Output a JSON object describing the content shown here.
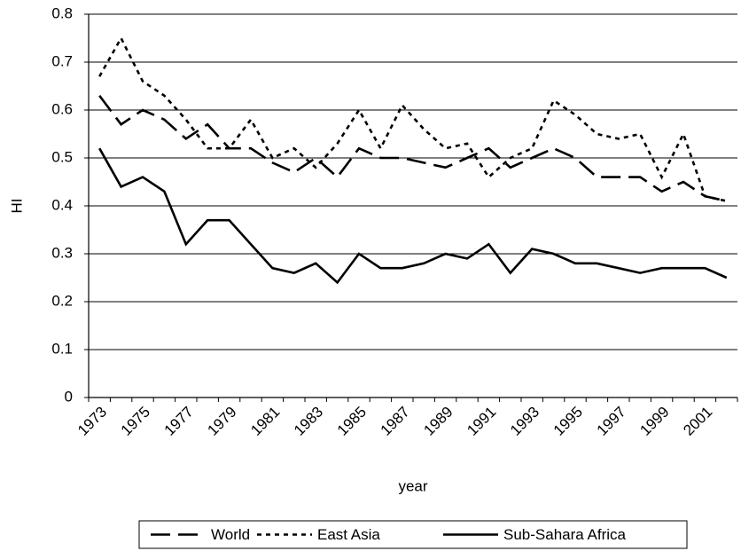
{
  "chart_data": {
    "type": "line",
    "x_label": "year",
    "y_label": "HI",
    "categories": [
      "1973",
      null,
      "1975",
      null,
      "1977",
      null,
      "1979",
      null,
      "1981",
      null,
      "1983",
      null,
      "1985",
      null,
      "1987",
      null,
      "1989",
      null,
      "1991",
      null,
      "1993",
      null,
      "1995",
      null,
      "1997",
      null,
      "1999",
      null,
      "2001",
      null
    ],
    "series": [
      {
        "name": "World",
        "color": "#000000",
        "dash": "dashed",
        "values": [
          0.63,
          0.57,
          0.6,
          0.58,
          0.54,
          0.57,
          0.52,
          0.52,
          0.49,
          0.47,
          0.5,
          0.46,
          0.52,
          0.5,
          0.5,
          0.49,
          0.48,
          0.5,
          0.52,
          0.48,
          0.5,
          0.52,
          0.5,
          0.46,
          0.46,
          0.46,
          0.43,
          0.45,
          0.42,
          0.41
        ]
      },
      {
        "name": "East Asia",
        "color": "#000000",
        "dash": "dotted",
        "values": [
          0.67,
          0.75,
          0.66,
          0.63,
          0.58,
          0.52,
          0.52,
          0.58,
          0.5,
          0.52,
          0.48,
          0.53,
          0.6,
          0.52,
          0.61,
          0.56,
          0.52,
          0.53,
          0.46,
          0.5,
          0.52,
          0.62,
          0.59,
          0.55,
          0.54,
          0.55,
          0.46,
          0.55,
          0.42,
          0.41
        ]
      },
      {
        "name": "Sub-Sahara Africa",
        "color": "#000000",
        "dash": "solid",
        "values": [
          0.52,
          0.44,
          0.46,
          0.43,
          0.32,
          0.37,
          0.37,
          0.32,
          0.27,
          0.26,
          0.28,
          0.24,
          0.3,
          0.27,
          0.27,
          0.28,
          0.3,
          0.29,
          0.32,
          0.26,
          0.31,
          0.3,
          0.28,
          0.28,
          0.27,
          0.26,
          0.27,
          0.27,
          0.27,
          0.25
        ]
      }
    ],
    "ylim": [
      0,
      0.8
    ],
    "yticks": [
      0,
      0.1,
      0.2,
      0.3,
      0.4,
      0.5,
      0.6,
      0.7,
      0.8
    ],
    "grid": true,
    "legend": "bottom"
  }
}
